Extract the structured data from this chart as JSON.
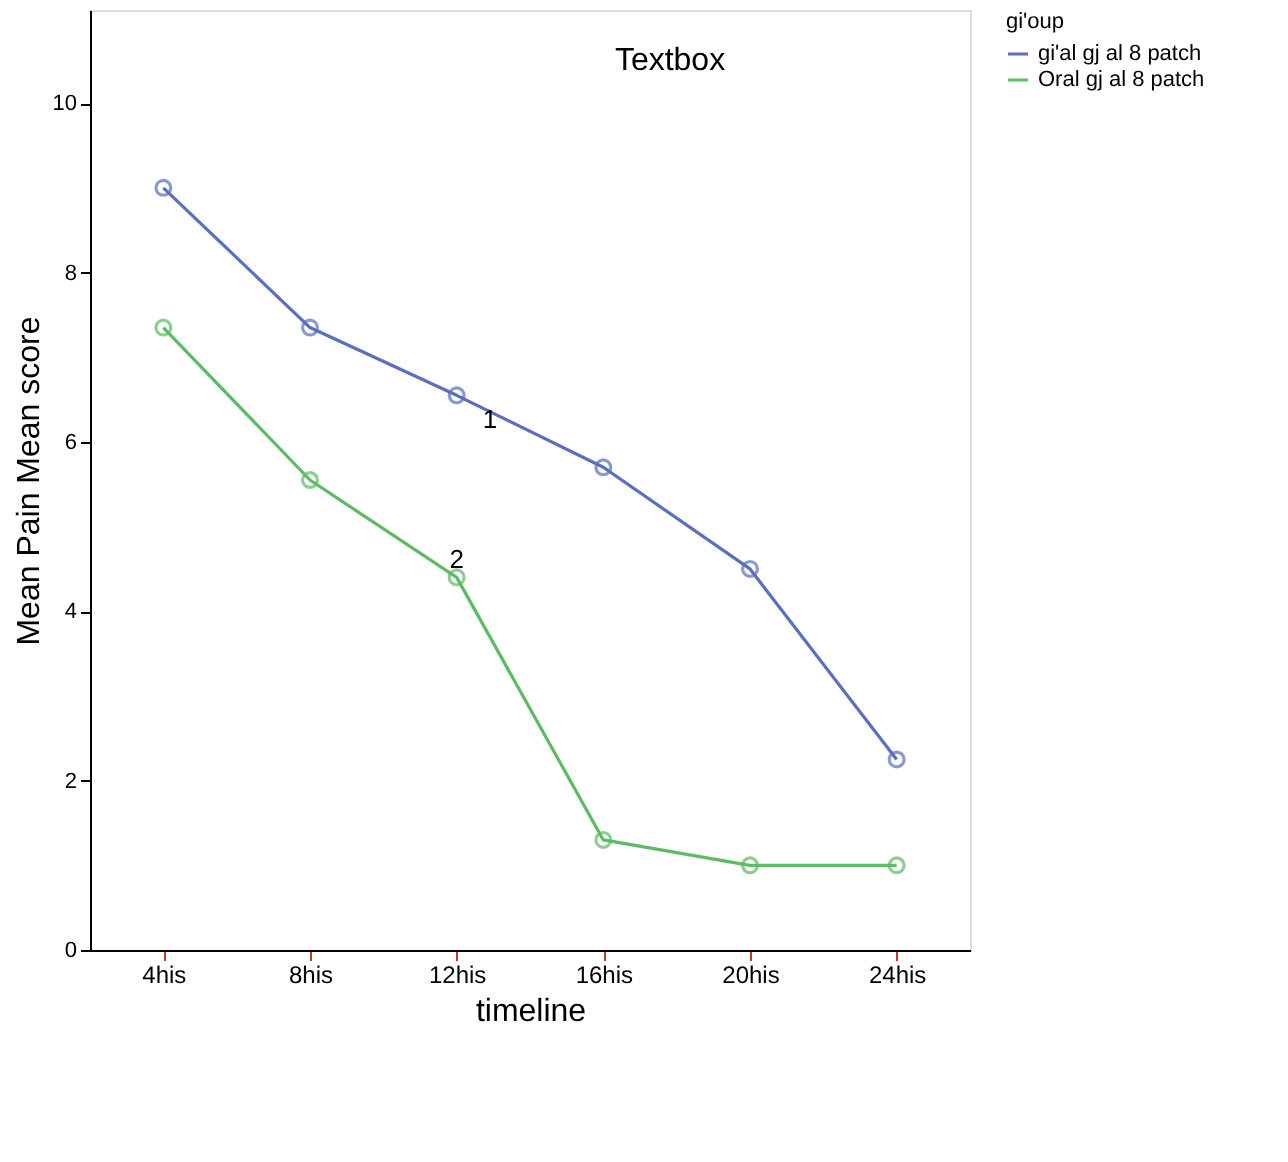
{
  "chart_data": {
    "type": "line",
    "categories": [
      "4his",
      "8his",
      "12his",
      "16his",
      "20his",
      "24his"
    ],
    "xlabel": "timeline",
    "ylabel": "Mean Pain Mean score",
    "legend_title": "gi'oup",
    "series": [
      {
        "name": "gi'al gj al 8 patch",
        "color": "#5b6fc0",
        "values": [
          9.0,
          7.35,
          6.55,
          5.7,
          4.5,
          2.25
        ]
      },
      {
        "name": "Oral gj al 8 patch",
        "color": "#5dbb63",
        "values": [
          7.35,
          5.55,
          4.4,
          1.3,
          1.0,
          1.0
        ]
      }
    ],
    "ylim": [
      0,
      11.1
    ],
    "yticks": [
      0,
      2,
      4,
      6,
      8,
      10
    ],
    "marker": "circle",
    "line_style": "solid",
    "grid": false,
    "legend": "top right",
    "annotations": [
      "Textbox",
      "1",
      {
        "text": "2",
        "x": "12his",
        "y": 4.6
      }
    ]
  }
}
